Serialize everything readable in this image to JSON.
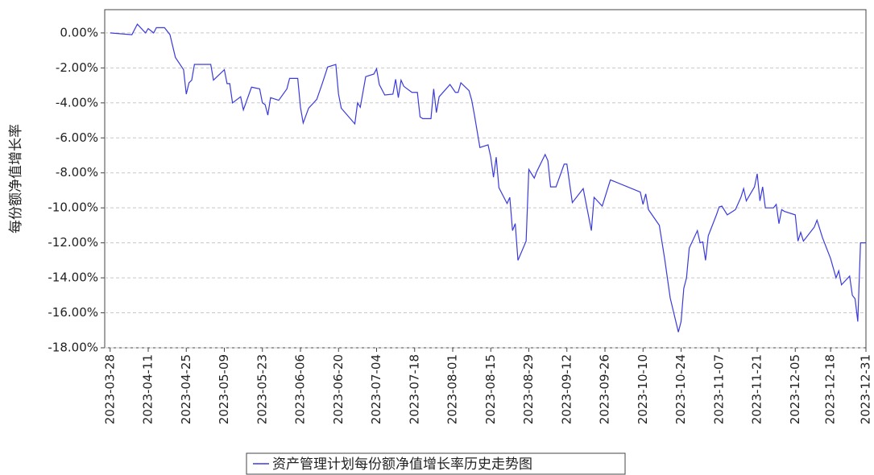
{
  "chart_data": {
    "type": "line",
    "ylabel": "每份额净值增长率",
    "xlim": [
      "2023-03-26",
      "2023-12-31"
    ],
    "ylim": [
      -18,
      1.33
    ],
    "xticks": [
      "2023-03-28",
      "2023-04-11",
      "2023-04-25",
      "2023-05-09",
      "2023-05-23",
      "2023-06-06",
      "2023-06-20",
      "2023-07-04",
      "2023-07-18",
      "2023-08-01",
      "2023-08-15",
      "2023-08-29",
      "2023-09-12",
      "2023-09-26",
      "2023-10-10",
      "2023-10-24",
      "2023-11-07",
      "2023-11-21",
      "2023-12-05",
      "2023-12-18",
      "2023-12-31"
    ],
    "yticks": [
      {
        "value": 0,
        "label": "0.00%"
      },
      {
        "value": -2,
        "label": "-2.00%"
      },
      {
        "value": -4,
        "label": "-4.00%"
      },
      {
        "value": -6,
        "label": "-6.00%"
      },
      {
        "value": -8,
        "label": "-8.00%"
      },
      {
        "value": -10,
        "label": "-10.00%"
      },
      {
        "value": -12,
        "label": "-12.00%"
      },
      {
        "value": -14,
        "label": "-14.00%"
      },
      {
        "value": -16,
        "label": "-16.00%"
      },
      {
        "value": -18,
        "label": "-18.00%"
      }
    ],
    "grid": true,
    "legend": "bottom",
    "x": [
      "2023-03-28",
      "2023-04-05",
      "2023-04-07",
      "2023-04-10",
      "2023-04-11",
      "2023-04-13",
      "2023-04-14",
      "2023-04-17",
      "2023-04-19",
      "2023-04-21",
      "2023-04-24",
      "2023-04-25",
      "2023-04-26",
      "2023-04-27",
      "2023-04-28",
      "2023-05-04",
      "2023-05-05",
      "2023-05-08",
      "2023-05-09",
      "2023-05-10",
      "2023-05-11",
      "2023-05-12",
      "2023-05-15",
      "2023-05-16",
      "2023-05-19",
      "2023-05-22",
      "2023-05-23",
      "2023-05-24",
      "2023-05-25",
      "2023-05-26",
      "2023-05-29",
      "2023-06-01",
      "2023-06-02",
      "2023-06-05",
      "2023-06-06",
      "2023-06-07",
      "2023-06-09",
      "2023-06-12",
      "2023-06-14",
      "2023-06-16",
      "2023-06-19",
      "2023-06-20",
      "2023-06-21",
      "2023-06-26",
      "2023-06-27",
      "2023-06-28",
      "2023-06-30",
      "2023-07-03",
      "2023-07-04",
      "2023-07-05",
      "2023-07-07",
      "2023-07-10",
      "2023-07-11",
      "2023-07-12",
      "2023-07-13",
      "2023-07-14",
      "2023-07-17",
      "2023-07-19",
      "2023-07-20",
      "2023-07-21",
      "2023-07-24",
      "2023-07-25",
      "2023-07-26",
      "2023-07-27",
      "2023-07-31",
      "2023-08-02",
      "2023-08-03",
      "2023-08-04",
      "2023-08-07",
      "2023-08-08",
      "2023-08-09",
      "2023-08-11",
      "2023-08-14",
      "2023-08-15",
      "2023-08-16",
      "2023-08-17",
      "2023-08-18",
      "2023-08-21",
      "2023-08-22",
      "2023-08-23",
      "2023-08-24",
      "2023-08-25",
      "2023-08-28",
      "2023-08-29",
      "2023-08-31",
      "2023-09-01",
      "2023-09-04",
      "2023-09-05",
      "2023-09-06",
      "2023-09-08",
      "2023-09-11",
      "2023-09-12",
      "2023-09-14",
      "2023-09-18",
      "2023-09-21",
      "2023-09-22",
      "2023-09-25",
      "2023-09-28",
      "2023-10-09",
      "2023-10-10",
      "2023-10-11",
      "2023-10-12",
      "2023-10-16",
      "2023-10-18",
      "2023-10-20",
      "2023-10-23",
      "2023-10-24",
      "2023-10-25",
      "2023-10-26",
      "2023-10-27",
      "2023-10-30",
      "2023-10-31",
      "2023-11-01",
      "2023-11-02",
      "2023-11-03",
      "2023-11-06",
      "2023-11-07",
      "2023-11-08",
      "2023-11-10",
      "2023-11-13",
      "2023-11-15",
      "2023-11-16",
      "2023-11-17",
      "2023-11-20",
      "2023-11-21",
      "2023-11-22",
      "2023-11-23",
      "2023-11-24",
      "2023-11-27",
      "2023-11-28",
      "2023-11-29",
      "2023-11-30",
      "2023-12-01",
      "2023-12-05",
      "2023-12-06",
      "2023-12-07",
      "2023-12-08",
      "2023-12-12",
      "2023-12-13",
      "2023-12-15",
      "2023-12-18",
      "2023-12-20",
      "2023-12-21",
      "2023-12-22",
      "2023-12-25",
      "2023-12-26",
      "2023-12-27",
      "2023-12-28",
      "2023-12-29",
      "2023-12-31"
    ],
    "series": [
      {
        "name": "资产管理计划每份额净值增长率历史走势图",
        "color": "#3b3bdc",
        "values": [
          0.0,
          -0.1,
          0.5,
          0.0,
          0.25,
          0.0,
          0.3,
          0.3,
          -0.1,
          -1.4,
          -2.1,
          -3.5,
          -2.85,
          -2.7,
          -1.8,
          -1.8,
          -2.7,
          -2.25,
          -2.1,
          -2.9,
          -2.9,
          -4.0,
          -3.65,
          -4.4,
          -3.1,
          -3.2,
          -4.0,
          -4.1,
          -4.7,
          -3.7,
          -3.85,
          -3.2,
          -2.6,
          -2.6,
          -4.25,
          -5.15,
          -4.3,
          -3.8,
          -2.9,
          -1.95,
          -1.8,
          -3.5,
          -4.3,
          -5.2,
          -4.0,
          -4.25,
          -2.5,
          -2.35,
          -2.05,
          -2.95,
          -3.55,
          -3.5,
          -2.65,
          -3.7,
          -2.7,
          -3.05,
          -3.4,
          -3.4,
          -4.8,
          -4.9,
          -4.9,
          -3.2,
          -4.55,
          -3.65,
          -2.95,
          -3.4,
          -3.4,
          -2.85,
          -3.3,
          -3.85,
          -4.7,
          -6.55,
          -6.4,
          -7.1,
          -8.25,
          -7.1,
          -8.85,
          -9.75,
          -9.4,
          -11.3,
          -10.9,
          -13.0,
          -11.9,
          -7.8,
          -8.3,
          -7.9,
          -6.95,
          -7.3,
          -8.8,
          -8.8,
          -7.5,
          -7.5,
          -9.7,
          -8.9,
          -11.3,
          -9.4,
          -9.9,
          -8.4,
          -9.1,
          -9.8,
          -9.2,
          -10.1,
          -11.0,
          -12.95,
          -15.15,
          -17.1,
          -16.5,
          -14.6,
          -14.0,
          -12.3,
          -11.3,
          -12.0,
          -11.95,
          -13.0,
          -11.6,
          -10.4,
          -9.95,
          -9.9,
          -10.4,
          -10.1,
          -9.4,
          -8.9,
          -9.6,
          -8.8,
          -8.05,
          -9.6,
          -8.8,
          -10.0,
          -10.0,
          -9.8,
          -10.9,
          -10.1,
          -10.2,
          -10.4,
          -11.9,
          -11.4,
          -11.9,
          -11.1,
          -10.7,
          -11.7,
          -12.9,
          -14.0,
          -13.6,
          -14.4,
          -13.9,
          -15.0,
          -15.2,
          -16.5,
          -12.0,
          -12.0
        ]
      }
    ]
  }
}
